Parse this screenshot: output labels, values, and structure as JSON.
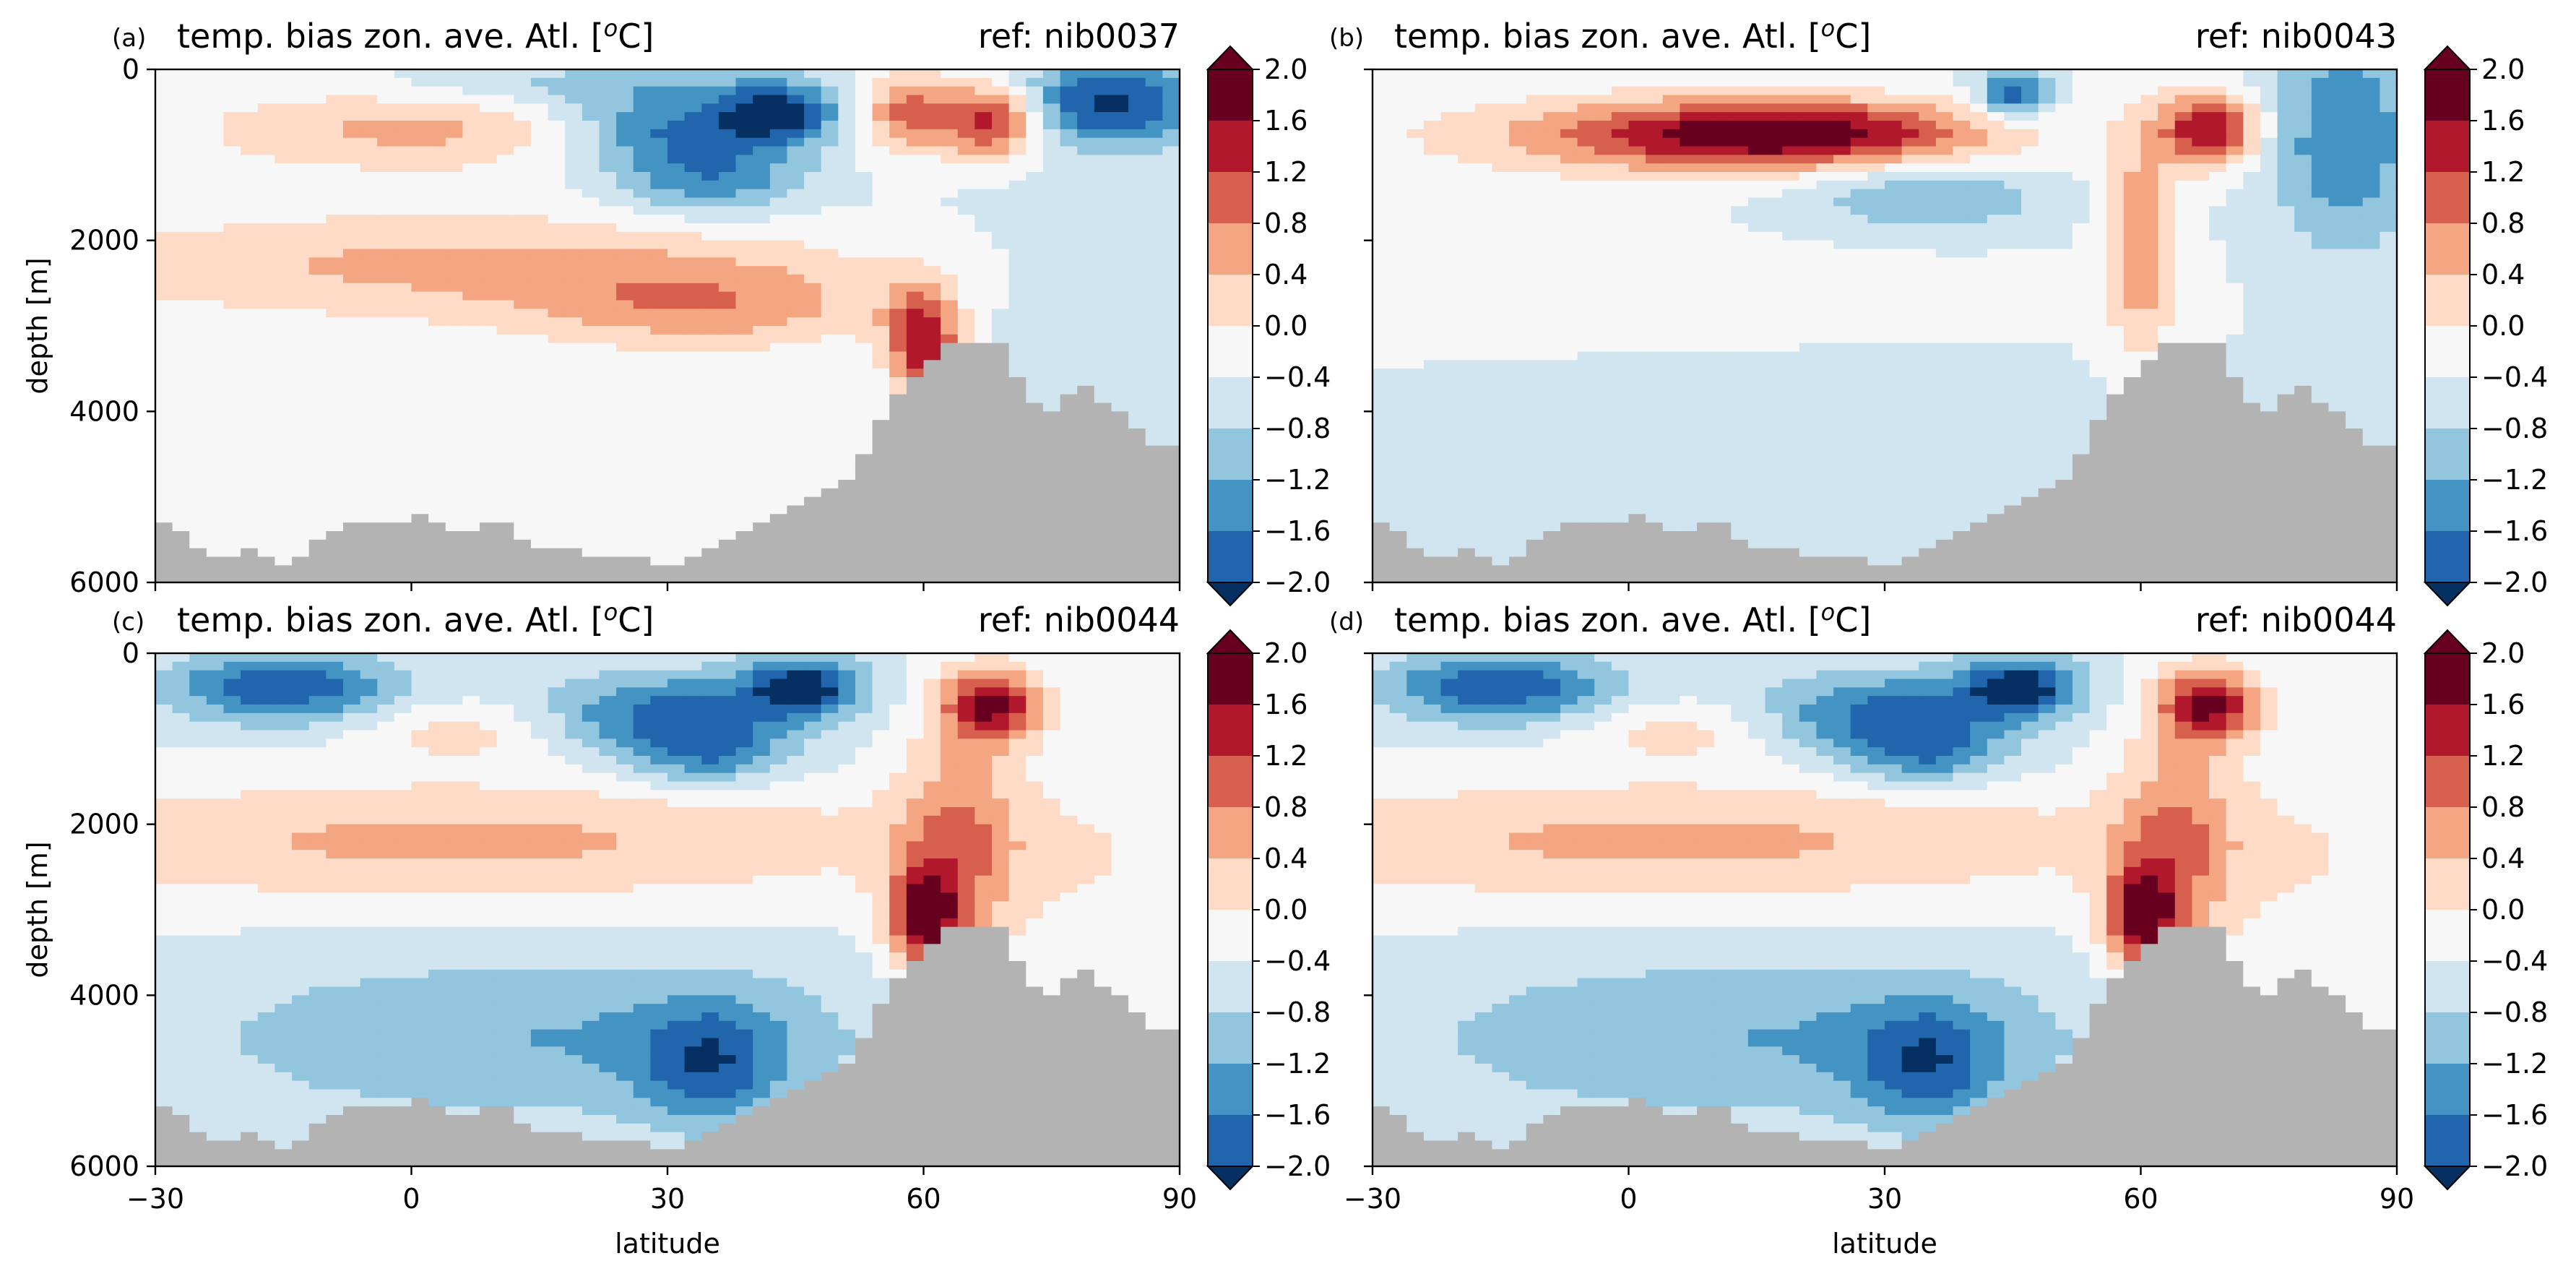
{
  "chart_data": [
    {
      "type": "heatmap",
      "panel_label": "(a)",
      "title": "temp. bias zon. ave. Atl. [",
      "title_sup": "o",
      "title_end": "C]",
      "ref_label": "ref: nib0037",
      "xlabel": "",
      "ylabel": "depth [m]",
      "xlim": [
        -30,
        90
      ],
      "ylim": [
        6000,
        0
      ],
      "xticks": [
        "",
        "",
        "",
        "",
        ""
      ],
      "yticks": [
        "0",
        "2000",
        "4000",
        "6000"
      ],
      "colorbar": {
        "ticks": [
          "2.0",
          "1.6",
          "1.2",
          "0.8",
          "0.4",
          "0.0",
          "−0.4",
          "−0.8",
          "−1.2",
          "−1.6",
          "−2.0"
        ]
      },
      "features": [
        {
          "lat": 0,
          "depth": 700,
          "value": 0.9,
          "wlat": 18,
          "wdepth": 350
        },
        {
          "lat": 5,
          "depth": 2300,
          "value": 0.9,
          "wlat": 35,
          "wdepth": 450
        },
        {
          "lat": 35,
          "depth": 2800,
          "value": 0.9,
          "wlat": 15,
          "wdepth": 350
        },
        {
          "lat": 30,
          "depth": 700,
          "value": -1.3,
          "wlat": 9,
          "wdepth": 300
        },
        {
          "lat": 43,
          "depth": 500,
          "value": -1.7,
          "wlat": 5,
          "wdepth": 250
        },
        {
          "lat": 35,
          "depth": 1300,
          "value": -1.1,
          "wlat": 8,
          "wdepth": 300
        },
        {
          "lat": 60,
          "depth": 3200,
          "value": 2.0,
          "wlat": 3,
          "wdepth": 450
        },
        {
          "lat": 58,
          "depth": 500,
          "value": 1.3,
          "wlat": 4,
          "wdepth": 350
        },
        {
          "lat": 68,
          "depth": 600,
          "value": 2.0,
          "wlat": 4,
          "wdepth": 300
        },
        {
          "lat": 82,
          "depth": 400,
          "value": -1.7,
          "wlat": 8,
          "wdepth": 350
        },
        {
          "lat": 15,
          "depth": 4500,
          "value": 0.2,
          "wlat": 25,
          "wdepth": 500
        },
        {
          "lat": 20,
          "depth": 200,
          "value": -0.6,
          "wlat": 15,
          "wdepth": 200
        },
        {
          "lat": 75,
          "depth": 2600,
          "value": -0.2,
          "wlat": 15,
          "wdepth": 900
        }
      ]
    },
    {
      "type": "heatmap",
      "panel_label": "(b)",
      "title": "temp. bias zon. ave. Atl. [",
      "title_sup": "o",
      "title_end": "C]",
      "ref_label": "ref: nib0043",
      "xlabel": "",
      "ylabel": "",
      "xlim": [
        -30,
        90
      ],
      "ylim": [
        6000,
        0
      ],
      "xticks": [
        "",
        "",
        "",
        "",
        ""
      ],
      "yticks": [
        "",
        "",
        "",
        ""
      ],
      "colorbar": {
        "ticks": [
          "2.0",
          "1.6",
          "1.2",
          "0.8",
          "0.4",
          "0.0",
          "−0.4",
          "−0.8",
          "−1.2",
          "−1.6",
          "−2.0"
        ]
      },
      "features": [
        {
          "lat": 20,
          "depth": 750,
          "value": 2.0,
          "wlat": 16,
          "wdepth": 280
        },
        {
          "lat": 0,
          "depth": 800,
          "value": 0.8,
          "wlat": 20,
          "wdepth": 350
        },
        {
          "lat": 0,
          "depth": 2600,
          "value": 0.3,
          "wlat": 30,
          "wdepth": 400
        },
        {
          "lat": 35,
          "depth": 1500,
          "value": -0.8,
          "wlat": 10,
          "wdepth": 300
        },
        {
          "lat": 45,
          "depth": 300,
          "value": -1.5,
          "wlat": 3,
          "wdepth": 200
        },
        {
          "lat": 60,
          "depth": 2000,
          "value": 1.2,
          "wlat": 3,
          "wdepth": 900
        },
        {
          "lat": 68,
          "depth": 700,
          "value": 2.0,
          "wlat": 4,
          "wdepth": 300
        },
        {
          "lat": 84,
          "depth": 800,
          "value": -1.2,
          "wlat": 6,
          "wdepth": 900
        },
        {
          "lat": 20,
          "depth": 4300,
          "value": -0.3,
          "wlat": 25,
          "wdepth": 600
        }
      ]
    },
    {
      "type": "heatmap",
      "panel_label": "(c)",
      "title": "temp. bias zon. ave. Atl. [",
      "title_sup": "o",
      "title_end": "C]",
      "ref_label": "ref: nib0044",
      "xlabel": "latitude",
      "ylabel": "depth [m]",
      "xlim": [
        -30,
        90
      ],
      "ylim": [
        6000,
        0
      ],
      "xticks": [
        "−30",
        "0",
        "30",
        "60",
        "90"
      ],
      "yticks": [
        "0",
        "2000",
        "4000",
        "6000"
      ],
      "colorbar": {
        "ticks": [
          "2.0",
          "1.6",
          "1.2",
          "0.8",
          "0.4",
          "0.0",
          "−0.4",
          "−0.8",
          "−1.2",
          "−1.6",
          "−2.0"
        ]
      },
      "features": [
        {
          "lat": -15,
          "depth": 400,
          "value": -1.5,
          "wlat": 10,
          "wdepth": 300
        },
        {
          "lat": 30,
          "depth": 700,
          "value": -1.3,
          "wlat": 10,
          "wdepth": 350
        },
        {
          "lat": 46,
          "depth": 400,
          "value": -1.8,
          "wlat": 5,
          "wdepth": 250
        },
        {
          "lat": 35,
          "depth": 1200,
          "value": -1.0,
          "wlat": 7,
          "wdepth": 250
        },
        {
          "lat": 5,
          "depth": 2200,
          "value": 0.9,
          "wlat": 40,
          "wdepth": 500
        },
        {
          "lat": 60,
          "depth": 3100,
          "value": 2.0,
          "wlat": 3,
          "wdepth": 400
        },
        {
          "lat": 68,
          "depth": 600,
          "value": 2.0,
          "wlat": 4,
          "wdepth": 300
        },
        {
          "lat": 64,
          "depth": 2200,
          "value": 1.0,
          "wlat": 5,
          "wdepth": 1000
        },
        {
          "lat": 15,
          "depth": 4500,
          "value": -0.8,
          "wlat": 30,
          "wdepth": 700
        },
        {
          "lat": 35,
          "depth": 4800,
          "value": -1.1,
          "wlat": 6,
          "wdepth": 500
        },
        {
          "lat": 5,
          "depth": 900,
          "value": 0.6,
          "wlat": 8,
          "wdepth": 250
        },
        {
          "lat": 80,
          "depth": 3000,
          "value": 0.3,
          "wlat": 12,
          "wdepth": 1500
        }
      ]
    },
    {
      "type": "heatmap",
      "panel_label": "(d)",
      "title": "temp. bias zon. ave. Atl. [",
      "title_sup": "o",
      "title_end": "C]",
      "ref_label": "ref: nib0044",
      "xlabel": "latitude",
      "ylabel": "",
      "xlim": [
        -30,
        90
      ],
      "ylim": [
        6000,
        0
      ],
      "xticks": [
        "−30",
        "0",
        "30",
        "60",
        "90"
      ],
      "yticks": [
        "",
        "",
        "",
        ""
      ],
      "colorbar": {
        "ticks": [
          "2.0",
          "1.6",
          "1.2",
          "0.8",
          "0.4",
          "0.0",
          "−0.4",
          "−0.8",
          "−1.2",
          "−1.6",
          "−2.0"
        ]
      },
      "features": [
        {
          "lat": -15,
          "depth": 400,
          "value": -1.5,
          "wlat": 10,
          "wdepth": 300
        },
        {
          "lat": 30,
          "depth": 700,
          "value": -1.3,
          "wlat": 10,
          "wdepth": 350
        },
        {
          "lat": 46,
          "depth": 400,
          "value": -1.8,
          "wlat": 5,
          "wdepth": 250
        },
        {
          "lat": 35,
          "depth": 1200,
          "value": -1.0,
          "wlat": 7,
          "wdepth": 250
        },
        {
          "lat": 5,
          "depth": 2200,
          "value": 0.9,
          "wlat": 40,
          "wdepth": 500
        },
        {
          "lat": 60,
          "depth": 3100,
          "value": 2.0,
          "wlat": 3,
          "wdepth": 400
        },
        {
          "lat": 68,
          "depth": 600,
          "value": 2.0,
          "wlat": 4,
          "wdepth": 300
        },
        {
          "lat": 64,
          "depth": 2200,
          "value": 1.0,
          "wlat": 5,
          "wdepth": 1000
        },
        {
          "lat": 15,
          "depth": 4500,
          "value": -0.8,
          "wlat": 30,
          "wdepth": 700
        },
        {
          "lat": 35,
          "depth": 4800,
          "value": -1.1,
          "wlat": 6,
          "wdepth": 500
        },
        {
          "lat": 5,
          "depth": 900,
          "value": 0.6,
          "wlat": 8,
          "wdepth": 250
        },
        {
          "lat": 80,
          "depth": 3000,
          "value": 0.3,
          "wlat": 12,
          "wdepth": 1500
        }
      ]
    }
  ],
  "bathymetry": {
    "lat": [
      -30,
      -26,
      -22,
      -18,
      -14,
      -10,
      -6,
      -2,
      2,
      6,
      10,
      14,
      18,
      22,
      26,
      30,
      34,
      38,
      42,
      46,
      50,
      54,
      56,
      58,
      60,
      62,
      64,
      66,
      68,
      70,
      72,
      74,
      76,
      78,
      80,
      82,
      84,
      86,
      88,
      90
    ],
    "depth": [
      5200,
      5500,
      5700,
      5600,
      5800,
      5400,
      5300,
      5300,
      5200,
      5400,
      5200,
      5600,
      5600,
      5700,
      5700,
      5800,
      5600,
      5500,
      5200,
      5000,
      4900,
      4300,
      3900,
      3700,
      3500,
      3300,
      3100,
      3300,
      3000,
      3300,
      3800,
      3900,
      4000,
      3600,
      3800,
      3900,
      4100,
      4300,
      4400,
      4300
    ]
  },
  "colors": {
    "land": "#b3b3b3",
    "colormap": [
      "#053061",
      "#2166ac",
      "#4393c3",
      "#92c5de",
      "#d1e5f0",
      "#f7f7f7",
      "#fddbc7",
      "#f4a582",
      "#d6604d",
      "#b2182b",
      "#67001f"
    ]
  }
}
